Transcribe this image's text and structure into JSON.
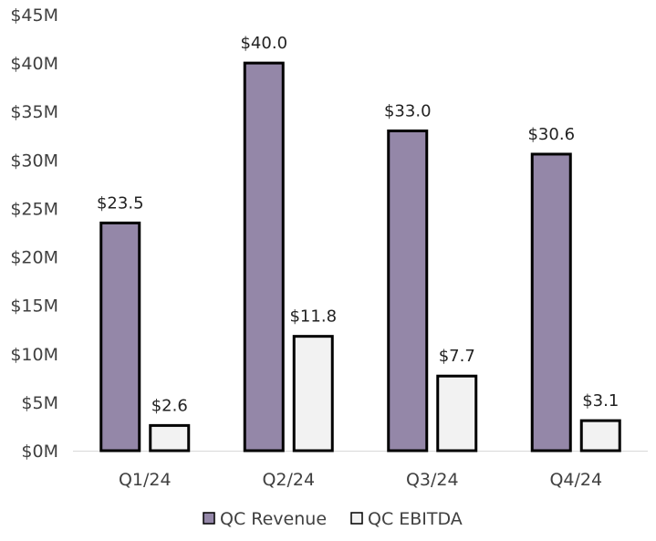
{
  "chart_data": {
    "type": "bar",
    "title": "",
    "xlabel": "",
    "ylabel": "",
    "categories": [
      "Q1/24",
      "Q2/24",
      "Q3/24",
      "Q4/24"
    ],
    "series": [
      {
        "name": "QC Revenue",
        "values": [
          23.5,
          40.0,
          33.0,
          30.6
        ],
        "labels": [
          "$23.5",
          "$40.0",
          "$33.0",
          "$30.6"
        ],
        "color": "#9487a8"
      },
      {
        "name": "QC EBITDA",
        "values": [
          2.6,
          11.8,
          7.7,
          3.1
        ],
        "labels": [
          "$2.6",
          "$11.8",
          "$7.7",
          "$3.1"
        ],
        "color": "#f2f2f2"
      }
    ],
    "ylim": [
      0,
      45
    ],
    "yticks": [
      0,
      5,
      10,
      15,
      20,
      25,
      30,
      35,
      40,
      45
    ],
    "ytick_labels": [
      "$0M",
      "$5M",
      "$10M",
      "$15M",
      "$20M",
      "$25M",
      "$30M",
      "$35M",
      "$40M",
      "$45M"
    ],
    "bar_outline_color": "#000000",
    "grid": false,
    "legend_position": "bottom"
  }
}
